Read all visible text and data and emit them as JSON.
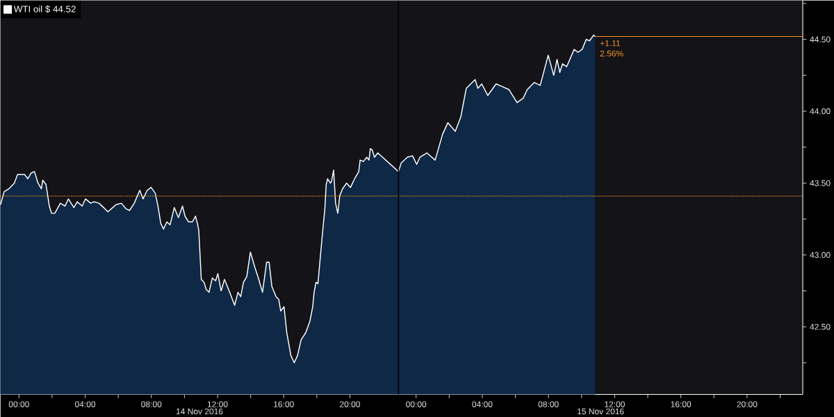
{
  "chart_data": {
    "type": "area",
    "x": [
      "2016-11-13T22:53",
      "2016-11-13T23:06",
      "2016-11-13T23:23",
      "2016-11-13T23:43",
      "2016-11-13T23:55",
      "2016-11-14T00:20",
      "2016-11-14T00:32",
      "2016-11-14T00:44",
      "2016-11-14T00:56",
      "2016-11-14T01:09",
      "2016-11-14T01:21",
      "2016-11-14T01:26",
      "2016-11-14T01:38",
      "2016-11-14T01:50",
      "2016-11-14T01:58",
      "2016-11-14T02:10",
      "2016-11-14T02:30",
      "2016-11-14T02:47",
      "2016-11-14T02:59",
      "2016-11-14T03:19",
      "2016-11-14T03:31",
      "2016-11-14T03:49",
      "2016-11-14T04:01",
      "2016-11-14T04:20",
      "2016-11-14T04:31",
      "2016-11-14T04:50",
      "2016-11-14T05:07",
      "2016-11-14T05:22",
      "2016-11-14T05:40",
      "2016-11-14T05:52",
      "2016-11-14T06:11",
      "2016-11-14T06:29",
      "2016-11-14T06:41",
      "2016-11-14T06:58",
      "2016-11-14T07:18",
      "2016-11-14T07:30",
      "2016-11-14T07:45",
      "2016-11-14T07:59",
      "2016-11-14T08:14",
      "2016-11-14T08:24",
      "2016-11-14T08:34",
      "2016-11-14T08:44",
      "2016-11-14T08:56",
      "2016-11-14T09:08",
      "2016-11-14T09:23",
      "2016-11-14T09:38",
      "2016-11-14T09:53",
      "2016-11-14T10:02",
      "2016-11-14T10:15",
      "2016-11-14T10:29",
      "2016-11-14T10:40",
      "2016-11-14T10:47",
      "2016-11-14T10:52",
      "2016-11-14T11:01",
      "2016-11-14T11:11",
      "2016-11-14T11:19",
      "2016-11-14T11:29",
      "2016-11-14T11:41",
      "2016-11-14T11:53",
      "2016-11-14T12:01",
      "2016-11-14T12:13",
      "2016-11-14T12:25",
      "2016-11-14T12:40",
      "2016-11-14T12:50",
      "2016-11-14T13:02",
      "2016-11-14T13:14",
      "2016-11-14T13:24",
      "2016-11-14T13:34",
      "2016-11-14T13:46",
      "2016-11-14T13:59",
      "2016-11-14T14:16",
      "2016-11-14T14:28",
      "2016-11-14T14:43",
      "2016-11-14T14:53",
      "2016-11-14T14:58",
      "2016-11-14T15:07",
      "2016-11-14T15:17",
      "2016-11-14T15:32",
      "2016-11-14T15:42",
      "2016-11-14T15:49",
      "2016-11-14T16:01",
      "2016-11-14T16:11",
      "2016-11-14T16:26",
      "2016-11-14T16:38",
      "2016-11-14T16:50",
      "2016-11-14T17:03",
      "2016-11-14T17:20",
      "2016-11-14T17:35",
      "2016-11-14T17:45",
      "2016-11-14T17:50",
      "2016-11-14T17:57",
      "2016-11-14T18:04",
      "2016-11-14T18:10",
      "2016-11-14T18:19",
      "2016-11-14T18:29",
      "2016-11-14T18:34",
      "2016-11-14T18:39",
      "2016-11-14T18:49",
      "2016-11-14T18:53",
      "2016-11-14T19:01",
      "2016-11-14T19:08",
      "2016-11-14T19:16",
      "2016-11-14T19:23",
      "2016-11-14T19:33",
      "2016-11-14T19:48",
      "2016-11-14T20:02",
      "2016-11-14T20:17",
      "2016-11-14T20:32",
      "2016-11-14T20:37",
      "2016-11-14T20:49",
      "2016-11-14T21:01",
      "2016-11-14T21:09",
      "2016-11-14T21:14",
      "2016-11-14T21:21",
      "2016-11-14T21:29",
      "2016-11-14T21:41",
      "2016-11-14T22:56",
      "2016-11-14T23:06",
      "2016-11-14T23:28",
      "2016-11-14T23:47",
      "2016-11-15T00:02",
      "2016-11-15T00:14",
      "2016-11-15T00:39",
      "2016-11-15T01:09",
      "2016-11-15T01:36",
      "2016-11-15T01:55",
      "2016-11-15T02:22",
      "2016-11-15T02:42",
      "2016-11-15T03:02",
      "2016-11-15T03:34",
      "2016-11-15T03:44",
      "2016-11-15T03:58",
      "2016-11-15T04:20",
      "2016-11-15T04:50",
      "2016-11-15T05:14",
      "2016-11-15T05:37",
      "2016-11-15T06:06",
      "2016-11-15T06:28",
      "2016-11-15T06:43",
      "2016-11-15T07:08",
      "2016-11-15T07:30",
      "2016-11-15T07:59",
      "2016-11-15T08:19",
      "2016-11-15T08:31",
      "2016-11-15T08:41",
      "2016-11-15T08:51",
      "2016-11-15T09:06",
      "2016-11-15T09:33",
      "2016-11-15T09:47",
      "2016-11-15T10:02",
      "2016-11-15T10:17",
      "2016-11-15T10:29",
      "2016-11-15T10:44",
      "2016-11-15T10:49"
    ],
    "series": [
      {
        "name": "WTI oil $ 44.52",
        "color": "#0e2846",
        "values": [
          43.35,
          43.44,
          43.46,
          43.5,
          43.56,
          43.56,
          43.53,
          43.57,
          43.58,
          43.5,
          43.46,
          43.52,
          43.49,
          43.34,
          43.29,
          43.29,
          43.36,
          43.34,
          43.39,
          43.33,
          43.37,
          43.34,
          43.39,
          43.36,
          43.37,
          43.36,
          43.33,
          43.3,
          43.33,
          43.35,
          43.36,
          43.32,
          43.31,
          43.36,
          43.45,
          43.39,
          43.45,
          43.47,
          43.43,
          43.34,
          43.22,
          43.18,
          43.23,
          43.21,
          43.33,
          43.26,
          43.34,
          43.27,
          43.23,
          43.23,
          43.27,
          43.22,
          43.17,
          42.83,
          42.81,
          42.76,
          42.74,
          42.84,
          42.82,
          42.87,
          42.75,
          42.83,
          42.76,
          42.71,
          42.65,
          42.74,
          42.71,
          42.81,
          42.85,
          43.02,
          42.91,
          42.84,
          42.74,
          42.88,
          42.95,
          42.95,
          42.78,
          42.71,
          42.69,
          42.61,
          42.64,
          42.46,
          42.3,
          42.25,
          42.3,
          42.41,
          42.46,
          42.54,
          42.64,
          42.74,
          42.81,
          42.8,
          42.93,
          43.12,
          43.32,
          43.49,
          43.53,
          43.5,
          43.51,
          43.59,
          43.36,
          43.29,
          43.41,
          43.46,
          43.5,
          43.47,
          43.53,
          43.58,
          43.66,
          43.65,
          43.68,
          43.66,
          43.74,
          43.73,
          43.68,
          43.71,
          43.58,
          43.64,
          43.68,
          43.69,
          43.63,
          43.68,
          43.71,
          43.66,
          43.84,
          43.92,
          43.86,
          43.96,
          44.16,
          44.22,
          44.16,
          44.19,
          44.11,
          44.19,
          44.17,
          44.15,
          44.06,
          44.09,
          44.15,
          44.2,
          44.18,
          44.39,
          44.25,
          44.36,
          44.27,
          44.33,
          44.31,
          44.43,
          44.41,
          44.43,
          44.5,
          44.49,
          44.53,
          44.52
        ]
      }
    ],
    "xlim": [
      "2016-11-13T22:53",
      "2016-11-15T23:22"
    ],
    "xticks": [
      {
        "value": "2016-11-14T00:00",
        "label": "00:00"
      },
      {
        "value": "2016-11-14T02:00",
        "label": null
      },
      {
        "value": "2016-11-14T04:00",
        "label": "04:00"
      },
      {
        "value": "2016-11-14T06:00",
        "label": null
      },
      {
        "value": "2016-11-14T08:00",
        "label": "08:00"
      },
      {
        "value": "2016-11-14T10:00",
        "label": null
      },
      {
        "value": "2016-11-14T12:00",
        "label": "12:00"
      },
      {
        "value": "2016-11-14T14:00",
        "label": null
      },
      {
        "value": "2016-11-14T16:00",
        "label": "16:00"
      },
      {
        "value": "2016-11-14T18:00",
        "label": null
      },
      {
        "value": "2016-11-14T20:00",
        "label": "20:00"
      },
      {
        "value": "2016-11-15T00:00",
        "label": "00:00"
      },
      {
        "value": "2016-11-15T02:00",
        "label": null
      },
      {
        "value": "2016-11-15T04:00",
        "label": "04:00"
      },
      {
        "value": "2016-11-15T06:00",
        "label": null
      },
      {
        "value": "2016-11-15T08:00",
        "label": "08:00"
      },
      {
        "value": "2016-11-15T10:00",
        "label": null
      },
      {
        "value": "2016-11-15T12:00",
        "label": "12:00"
      },
      {
        "value": "2016-11-15T14:00",
        "label": null
      },
      {
        "value": "2016-11-15T16:00",
        "label": "16:00"
      },
      {
        "value": "2016-11-15T18:00",
        "label": null
      },
      {
        "value": "2016-11-15T20:00",
        "label": "20:00"
      },
      {
        "value": "2016-11-15T22:00",
        "label": null
      }
    ],
    "ylim": [
      42.03,
      44.77
    ],
    "yticks": [
      {
        "value": 42.25,
        "label": null
      },
      {
        "value": 42.5,
        "label": "42.50"
      },
      {
        "value": 42.75,
        "label": null
      },
      {
        "value": 43,
        "label": "43.00"
      },
      {
        "value": 43.25,
        "label": null
      },
      {
        "value": 43.5,
        "label": "43.50"
      },
      {
        "value": 43.75,
        "label": null
      },
      {
        "value": 44,
        "label": "44.00"
      },
      {
        "value": 44.25,
        "label": null
      },
      {
        "value": 44.5,
        "label": "44.50"
      },
      {
        "value": 44.75,
        "label": null
      }
    ],
    "ref_lines": [
      {
        "axis": "y",
        "value": 43.41,
        "color": "#f7941d",
        "line_style": "dotted"
      },
      {
        "axis": "y",
        "value": 44.52,
        "color": "#f7941d",
        "line_style": "solid"
      },
      {
        "axis": "x",
        "value": "2016-11-14T22:56",
        "color": "#000000",
        "line_style": "solid"
      }
    ],
    "annotations": [
      {
        "text": "+1.11",
        "x": "2016-11-15T10:49",
        "y": 44.52
      },
      {
        "text": "2.56%",
        "x": "2016-11-15T10:49",
        "y": 44.52
      },
      "14 Nov 2016",
      "15 Nov 2016"
    ],
    "legend": "top left"
  }
}
